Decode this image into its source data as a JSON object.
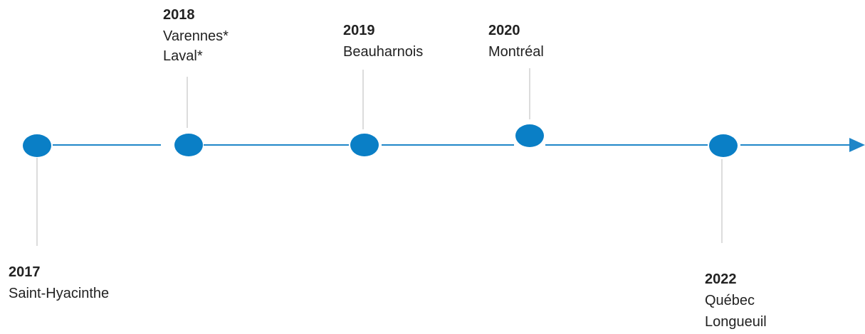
{
  "events": [
    {
      "year": "2017",
      "places": [
        "Saint-Hyacinthe"
      ]
    },
    {
      "year": "2018",
      "places": [
        "Varennes*",
        "Laval*"
      ]
    },
    {
      "year": "2019",
      "places": [
        "Beauharnois"
      ]
    },
    {
      "year": "2020",
      "places": [
        "Montréal"
      ]
    },
    {
      "year": "2022",
      "places": [
        "Québec",
        "Longueuil"
      ]
    }
  ]
}
